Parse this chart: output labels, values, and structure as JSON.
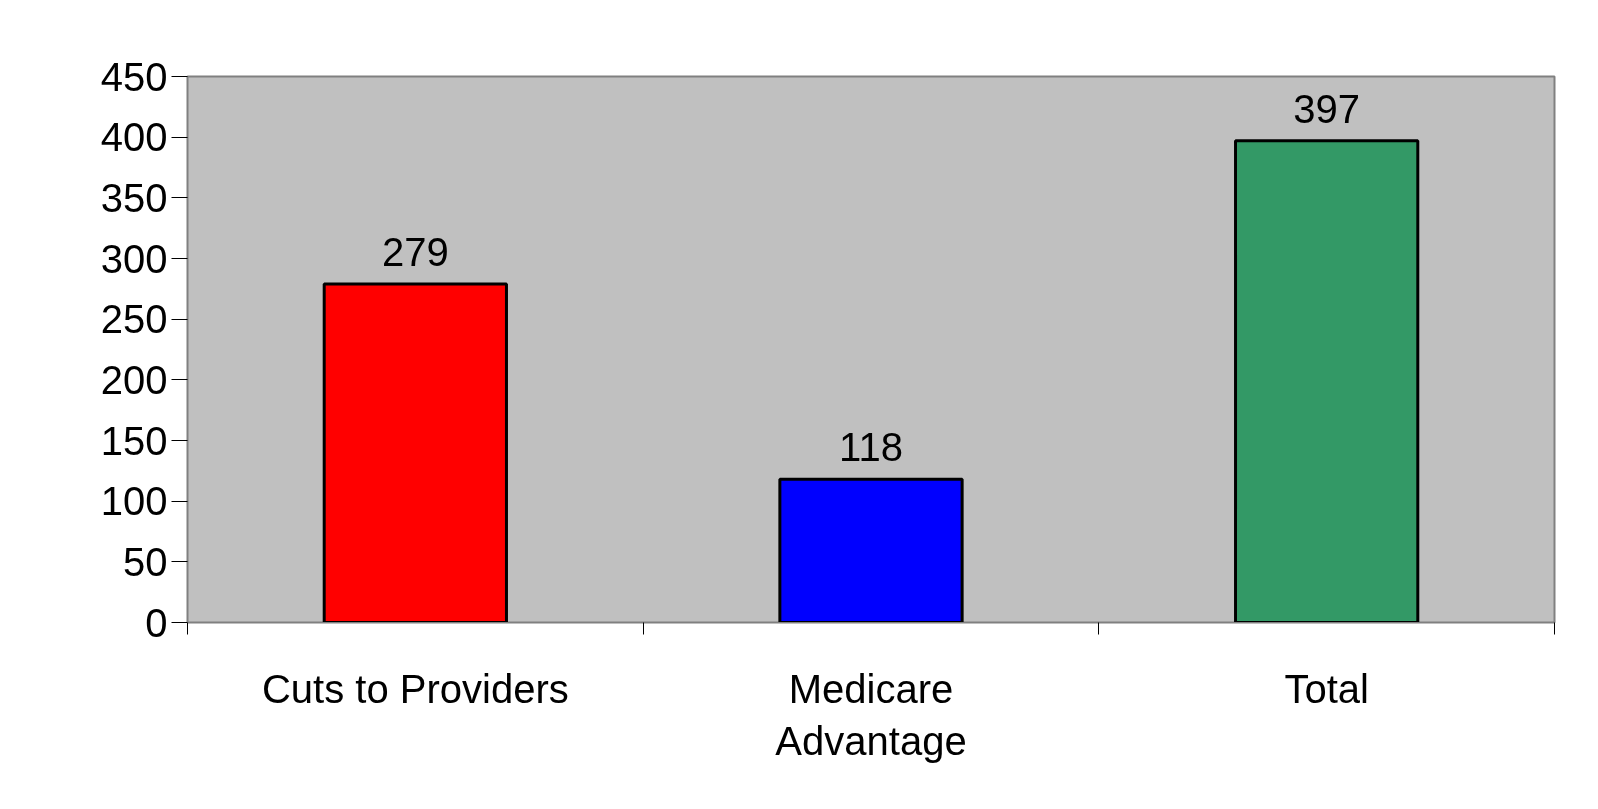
{
  "chart_data": {
    "type": "bar",
    "categories": [
      "Cuts to Providers",
      "Medicare\nAdvantage",
      "Total"
    ],
    "values": [
      279,
      118,
      397
    ],
    "colors": [
      "#ff0000",
      "#0000ff",
      "#339966"
    ],
    "ylim": [
      0,
      450
    ],
    "yticks": [
      0,
      50,
      100,
      150,
      200,
      250,
      300,
      350,
      400,
      450
    ],
    "data_labels": true
  }
}
